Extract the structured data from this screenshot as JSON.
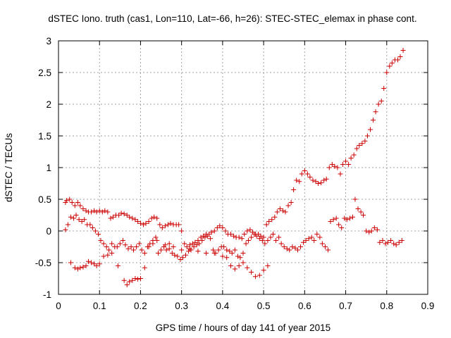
{
  "chart_data": {
    "type": "scatter",
    "title": "dSTEC Iono. truth (cas1, Lon=110, Lat=-66, h=26): STEC-STEC_elemax in phase cont.",
    "xlabel": "GPS time / hours of day 141 of year 2015",
    "ylabel": "dSTEC  / TECUs",
    "xlim": [
      0,
      0.9
    ],
    "ylim": [
      -1,
      3
    ],
    "xticks": [
      "0",
      "0.1",
      "0.2",
      "0.3",
      "0.4",
      "0.5",
      "0.6",
      "0.7",
      "0.8",
      "0.9"
    ],
    "yticks": [
      "-1",
      "-0.5",
      "0",
      "0.5",
      "1",
      "1.5",
      "2",
      "2.5",
      "3"
    ],
    "grid": true,
    "marker": "+",
    "color": "#cc0000",
    "series": [
      {
        "x": [
          0.017,
          0.02,
          0.027,
          0.033,
          0.04,
          0.047,
          0.053,
          0.06,
          0.067,
          0.073,
          0.08,
          0.087,
          0.093,
          0.1,
          0.107,
          0.113,
          0.12,
          0.127,
          0.133,
          0.14,
          0.147,
          0.153,
          0.16,
          0.167,
          0.173,
          0.18,
          0.187,
          0.193,
          0.2,
          0.207,
          0.213,
          0.22,
          0.227,
          0.233,
          0.24,
          0.247,
          0.253,
          0.26,
          0.267,
          0.273,
          0.28,
          0.287,
          0.293,
          0.3,
          0.307,
          0.313,
          0.32,
          0.327,
          0.333,
          0.34,
          0.347,
          0.353,
          0.36,
          0.367,
          0.373,
          0.38,
          0.387,
          0.393,
          0.4,
          0.407,
          0.413,
          0.42,
          0.427,
          0.433,
          0.44,
          0.447,
          0.453,
          0.46,
          0.467,
          0.473,
          0.48,
          0.487,
          0.493,
          0.5,
          0.507,
          0.513,
          0.52,
          0.527,
          0.533,
          0.54,
          0.547,
          0.553,
          0.56,
          0.567,
          0.573,
          0.58,
          0.587,
          0.593,
          0.6,
          0.607,
          0.613,
          0.62,
          0.627,
          0.633,
          0.64,
          0.647,
          0.653,
          0.66,
          0.667,
          0.673,
          0.68,
          0.687,
          0.693,
          0.7,
          0.707,
          0.713,
          0.72,
          0.727,
          0.733,
          0.74,
          0.747,
          0.753,
          0.76,
          0.767,
          0.773,
          0.78,
          0.787,
          0.793,
          0.8,
          0.807,
          0.813,
          0.82,
          0.827,
          0.833,
          0.84
        ],
        "y": [
          0.45,
          0.48,
          0.5,
          0.45,
          0.4,
          0.45,
          0.4,
          0.35,
          0.32,
          0.3,
          0.3,
          0.32,
          0.3,
          0.32,
          0.3,
          0.32,
          0.3,
          0.2,
          0.22,
          0.25,
          0.25,
          0.28,
          0.27,
          0.25,
          0.22,
          0.2,
          0.18,
          0.15,
          0.12,
          0.1,
          0.12,
          0.15,
          0.2,
          0.22,
          0.2,
          0.1,
          0.05,
          0.08,
          0.1,
          0.12,
          0.1,
          0.1,
          0.1,
          0.0,
          -0.2,
          -0.25,
          -0.22,
          -0.2,
          -0.18,
          -0.15,
          -0.1,
          -0.08,
          -0.05,
          -0.05,
          -0.02,
          0.0,
          0.05,
          0.08,
          0.05,
          0.0,
          -0.05,
          -0.05,
          -0.08,
          -0.1,
          -0.1,
          -0.12,
          -0.05,
          0.0,
          0.02,
          -0.02,
          -0.05,
          -0.05,
          -0.08,
          -0.1,
          0.1,
          0.15,
          0.18,
          0.22,
          0.3,
          0.35,
          0.32,
          0.3,
          0.4,
          0.45,
          0.65,
          0.8,
          0.78,
          0.9,
          0.95,
          0.9,
          0.85,
          0.8,
          0.78,
          0.75,
          0.76,
          0.8,
          0.82,
          1.0,
          1.05,
          1.02,
          1.0,
          0.9,
          1.05,
          1.1,
          1.05,
          1.15,
          1.2,
          1.3,
          1.35,
          1.38,
          1.42,
          1.5,
          1.6,
          1.75,
          1.88,
          2.0,
          2.05,
          2.25,
          2.5,
          2.6,
          2.65,
          2.7,
          2.7,
          2.75,
          2.85
        ]
      },
      {
        "x": [
          0.017,
          0.023,
          0.03,
          0.037,
          0.043,
          0.05,
          0.057,
          0.063,
          0.07,
          0.077,
          0.083,
          0.09,
          0.097,
          0.103,
          0.11,
          0.117,
          0.123,
          0.13,
          0.137,
          0.143,
          0.15,
          0.157,
          0.163,
          0.17,
          0.177,
          0.183,
          0.19,
          0.197,
          0.203,
          0.21,
          0.217,
          0.223,
          0.23,
          0.237,
          0.243,
          0.25,
          0.257,
          0.263,
          0.27,
          0.277,
          0.283,
          0.29,
          0.297,
          0.303,
          0.31,
          0.317,
          0.323,
          0.33,
          0.337,
          0.343,
          0.35,
          0.357,
          0.363,
          0.37,
          0.377,
          0.383,
          0.39,
          0.397,
          0.403,
          0.41,
          0.417,
          0.423,
          0.43,
          0.437,
          0.443,
          0.45,
          0.457,
          0.463,
          0.47,
          0.477,
          0.483,
          0.49,
          0.497,
          0.503,
          0.51,
          0.517,
          0.523,
          0.53,
          0.537,
          0.543,
          0.55,
          0.557,
          0.563,
          0.57,
          0.577,
          0.583,
          0.59,
          0.597,
          0.603,
          0.61,
          0.617,
          0.623,
          0.63,
          0.637,
          0.643,
          0.65,
          0.657,
          0.663,
          0.67,
          0.677,
          0.683,
          0.69,
          0.697,
          0.703,
          0.71,
          0.717,
          0.723,
          0.73,
          0.737,
          0.743,
          0.75,
          0.757,
          0.763,
          0.77,
          0.777,
          0.783,
          0.79,
          0.797,
          0.803,
          0.81,
          0.817,
          0.823,
          0.83,
          0.837
        ],
        "y": [
          0.02,
          0.1,
          0.22,
          0.2,
          0.25,
          0.18,
          0.15,
          0.18,
          0.1,
          0.1,
          0.05,
          0.0,
          -0.05,
          -0.15,
          -0.2,
          -0.25,
          -0.3,
          -0.35,
          -0.25,
          -0.25,
          -0.2,
          -0.15,
          -0.22,
          -0.28,
          -0.25,
          -0.3,
          -0.25,
          -0.2,
          -0.3,
          -0.35,
          -0.25,
          -0.2,
          -0.15,
          -0.1,
          -0.35,
          -0.3,
          -0.25,
          -0.3,
          -0.28,
          -0.35,
          -0.38,
          -0.4,
          -0.45,
          -0.42,
          -0.38,
          -0.32,
          -0.3,
          -0.25,
          -0.22,
          -0.2,
          -0.15,
          -0.1,
          -0.08,
          -0.12,
          -0.3,
          -0.35,
          -0.3,
          -0.25,
          -0.25,
          -0.3,
          -0.32,
          -0.35,
          -0.3,
          -0.4,
          -0.42,
          -0.35,
          -0.2,
          -0.15,
          -0.1,
          -0.05,
          -0.08,
          -0.12,
          -0.15,
          -0.2,
          -0.15,
          -0.1,
          -0.05,
          -0.15,
          -0.1,
          -0.2,
          -0.25,
          -0.28,
          -0.3,
          -0.25,
          -0.27,
          -0.3,
          -0.25,
          -0.18,
          -0.15,
          -0.12,
          -0.1,
          -0.15,
          -0.05,
          -0.1,
          -0.2,
          -0.25,
          -0.3,
          0.15,
          0.18,
          0.2,
          0.1,
          0.05,
          0.2,
          0.18,
          0.2,
          0.22,
          0.5,
          0.35,
          0.3,
          0.25,
          0.0,
          -0.02,
          0.0,
          0.05,
          0.02,
          -0.18,
          -0.15,
          -0.2,
          -0.18,
          -0.15,
          -0.2,
          -0.22,
          -0.18,
          -0.15
        ]
      },
      {
        "x": [
          0.03,
          0.04,
          0.047,
          0.053,
          0.06,
          0.067,
          0.073,
          0.08,
          0.087,
          0.093,
          0.1,
          0.11,
          0.12,
          0.13,
          0.145,
          0.16,
          0.167,
          0.173,
          0.18,
          0.187,
          0.193,
          0.2,
          0.21,
          0.22,
          0.23,
          0.24,
          0.26,
          0.27,
          0.28,
          0.3,
          0.32,
          0.34,
          0.36,
          0.38,
          0.4,
          0.41,
          0.42,
          0.43,
          0.44,
          0.45,
          0.46,
          0.47,
          0.48,
          0.49,
          0.5,
          0.51
        ],
        "y": [
          -0.5,
          -0.58,
          -0.6,
          -0.58,
          -0.57,
          -0.55,
          -0.48,
          -0.5,
          -0.52,
          -0.55,
          -0.52,
          -0.4,
          -0.38,
          -0.2,
          -0.55,
          -0.78,
          -0.85,
          -0.8,
          -0.78,
          -0.75,
          -0.76,
          -0.75,
          -0.58,
          -0.25,
          -0.2,
          -0.15,
          -0.22,
          -0.2,
          -0.25,
          -0.3,
          -0.28,
          -0.32,
          -0.35,
          -0.35,
          -0.4,
          -0.42,
          -0.55,
          -0.6,
          -0.55,
          -0.5,
          -0.58,
          -0.65,
          -0.72,
          -0.7,
          -0.62,
          -0.55
        ]
      }
    ]
  }
}
